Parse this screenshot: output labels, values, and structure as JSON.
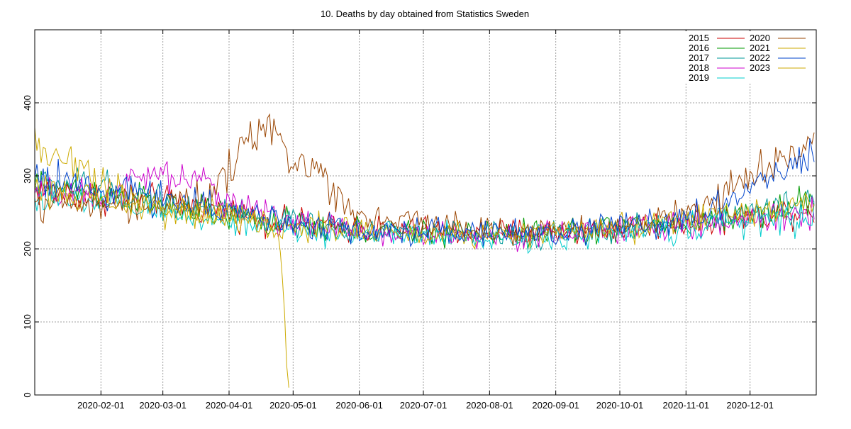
{
  "chart_data": {
    "type": "line",
    "title": "10. Deaths by day obtained from Statistics Sweden",
    "xlabel": "",
    "ylabel": "",
    "x_axis": {
      "range": [
        "2020-01-01",
        "2020-12-31"
      ],
      "ticks": [
        "2020-02-01",
        "2020-03-01",
        "2020-04-01",
        "2020-05-01",
        "2020-06-01",
        "2020-07-01",
        "2020-08-01",
        "2020-09-01",
        "2020-10-01",
        "2020-11-01",
        "2020-12-01"
      ]
    },
    "y_axis": {
      "range": [
        0,
        500
      ],
      "ticks": [
        0,
        100,
        200,
        300,
        400
      ]
    },
    "grid": true,
    "legend_position": "top-right",
    "series": [
      {
        "name": "2015",
        "color": "#cc0000",
        "anchors": [
          [
            1,
            280
          ],
          [
            30,
            272
          ],
          [
            60,
            265
          ],
          [
            91,
            250
          ],
          [
            121,
            235
          ],
          [
            152,
            228
          ],
          [
            182,
            225
          ],
          [
            213,
            222
          ],
          [
            244,
            224
          ],
          [
            274,
            228
          ],
          [
            305,
            236
          ],
          [
            335,
            245
          ],
          [
            366,
            255
          ]
        ]
      },
      {
        "name": "2016",
        "color": "#009900",
        "anchors": [
          [
            1,
            285
          ],
          [
            30,
            278
          ],
          [
            60,
            262
          ],
          [
            91,
            246
          ],
          [
            121,
            232
          ],
          [
            152,
            225
          ],
          [
            182,
            222
          ],
          [
            213,
            220
          ],
          [
            244,
            222
          ],
          [
            274,
            228
          ],
          [
            305,
            234
          ],
          [
            335,
            246
          ],
          [
            366,
            268
          ]
        ]
      },
      {
        "name": "2017",
        "color": "#009999",
        "anchors": [
          [
            1,
            290
          ],
          [
            30,
            285
          ],
          [
            60,
            268
          ],
          [
            91,
            248
          ],
          [
            121,
            234
          ],
          [
            152,
            226
          ],
          [
            182,
            222
          ],
          [
            213,
            218
          ],
          [
            244,
            222
          ],
          [
            274,
            226
          ],
          [
            305,
            234
          ],
          [
            335,
            248
          ],
          [
            366,
            262
          ]
        ]
      },
      {
        "name": "2018",
        "color": "#cc00cc",
        "anchors": [
          [
            1,
            275
          ],
          [
            30,
            270
          ],
          [
            50,
            295
          ],
          [
            60,
            300
          ],
          [
            80,
            290
          ],
          [
            91,
            268
          ],
          [
            121,
            236
          ],
          [
            152,
            222
          ],
          [
            182,
            220
          ],
          [
            213,
            218
          ],
          [
            244,
            220
          ],
          [
            274,
            226
          ],
          [
            305,
            232
          ],
          [
            335,
            240
          ],
          [
            366,
            250
          ]
        ]
      },
      {
        "name": "2019",
        "color": "#00cccc",
        "anchors": [
          [
            1,
            270
          ],
          [
            30,
            262
          ],
          [
            60,
            252
          ],
          [
            91,
            240
          ],
          [
            121,
            228
          ],
          [
            152,
            220
          ],
          [
            182,
            216
          ],
          [
            213,
            214
          ],
          [
            244,
            218
          ],
          [
            274,
            222
          ],
          [
            305,
            230
          ],
          [
            335,
            238
          ],
          [
            366,
            242
          ]
        ]
      },
      {
        "name": "2020",
        "color": "#994400",
        "anchors": [
          [
            1,
            265
          ],
          [
            30,
            258
          ],
          [
            60,
            262
          ],
          [
            75,
            262
          ],
          [
            85,
            275
          ],
          [
            91,
            300
          ],
          [
            98,
            335
          ],
          [
            105,
            360
          ],
          [
            111,
            378
          ],
          [
            116,
            335
          ],
          [
            121,
            315
          ],
          [
            131,
            320
          ],
          [
            142,
            275
          ],
          [
            152,
            248
          ],
          [
            167,
            240
          ],
          [
            182,
            236
          ],
          [
            213,
            228
          ],
          [
            244,
            224
          ],
          [
            274,
            226
          ],
          [
            290,
            235
          ],
          [
            305,
            248
          ],
          [
            320,
            272
          ],
          [
            335,
            302
          ],
          [
            350,
            318
          ],
          [
            366,
            345
          ]
        ]
      },
      {
        "name": "2021",
        "color": "#ccaa00",
        "anchors": [
          [
            1,
            340
          ],
          [
            15,
            325
          ],
          [
            30,
            300
          ],
          [
            45,
            270
          ],
          [
            60,
            256
          ],
          [
            91,
            245
          ],
          [
            121,
            232
          ],
          [
            152,
            225
          ],
          [
            182,
            222
          ],
          [
            213,
            219
          ],
          [
            244,
            222
          ],
          [
            274,
            228
          ],
          [
            305,
            238
          ],
          [
            335,
            248
          ],
          [
            366,
            262
          ]
        ]
      },
      {
        "name": "2022",
        "color": "#0044cc",
        "anchors": [
          [
            1,
            300
          ],
          [
            15,
            290
          ],
          [
            30,
            280
          ],
          [
            60,
            272
          ],
          [
            91,
            255
          ],
          [
            121,
            235
          ],
          [
            152,
            226
          ],
          [
            182,
            224
          ],
          [
            213,
            222
          ],
          [
            244,
            224
          ],
          [
            274,
            232
          ],
          [
            305,
            242
          ],
          [
            320,
            258
          ],
          [
            335,
            285
          ],
          [
            350,
            305
          ],
          [
            366,
            335
          ]
        ]
      },
      {
        "name": "2023",
        "color": "#ccaa00",
        "anchors": [
          [
            1,
            285
          ],
          [
            30,
            265
          ],
          [
            60,
            255
          ],
          [
            91,
            240
          ],
          [
            110,
            232
          ],
          [
            114,
            225
          ],
          [
            116,
            200
          ],
          [
            118,
            120
          ],
          [
            119,
            40
          ],
          [
            120,
            10
          ]
        ]
      }
    ]
  }
}
